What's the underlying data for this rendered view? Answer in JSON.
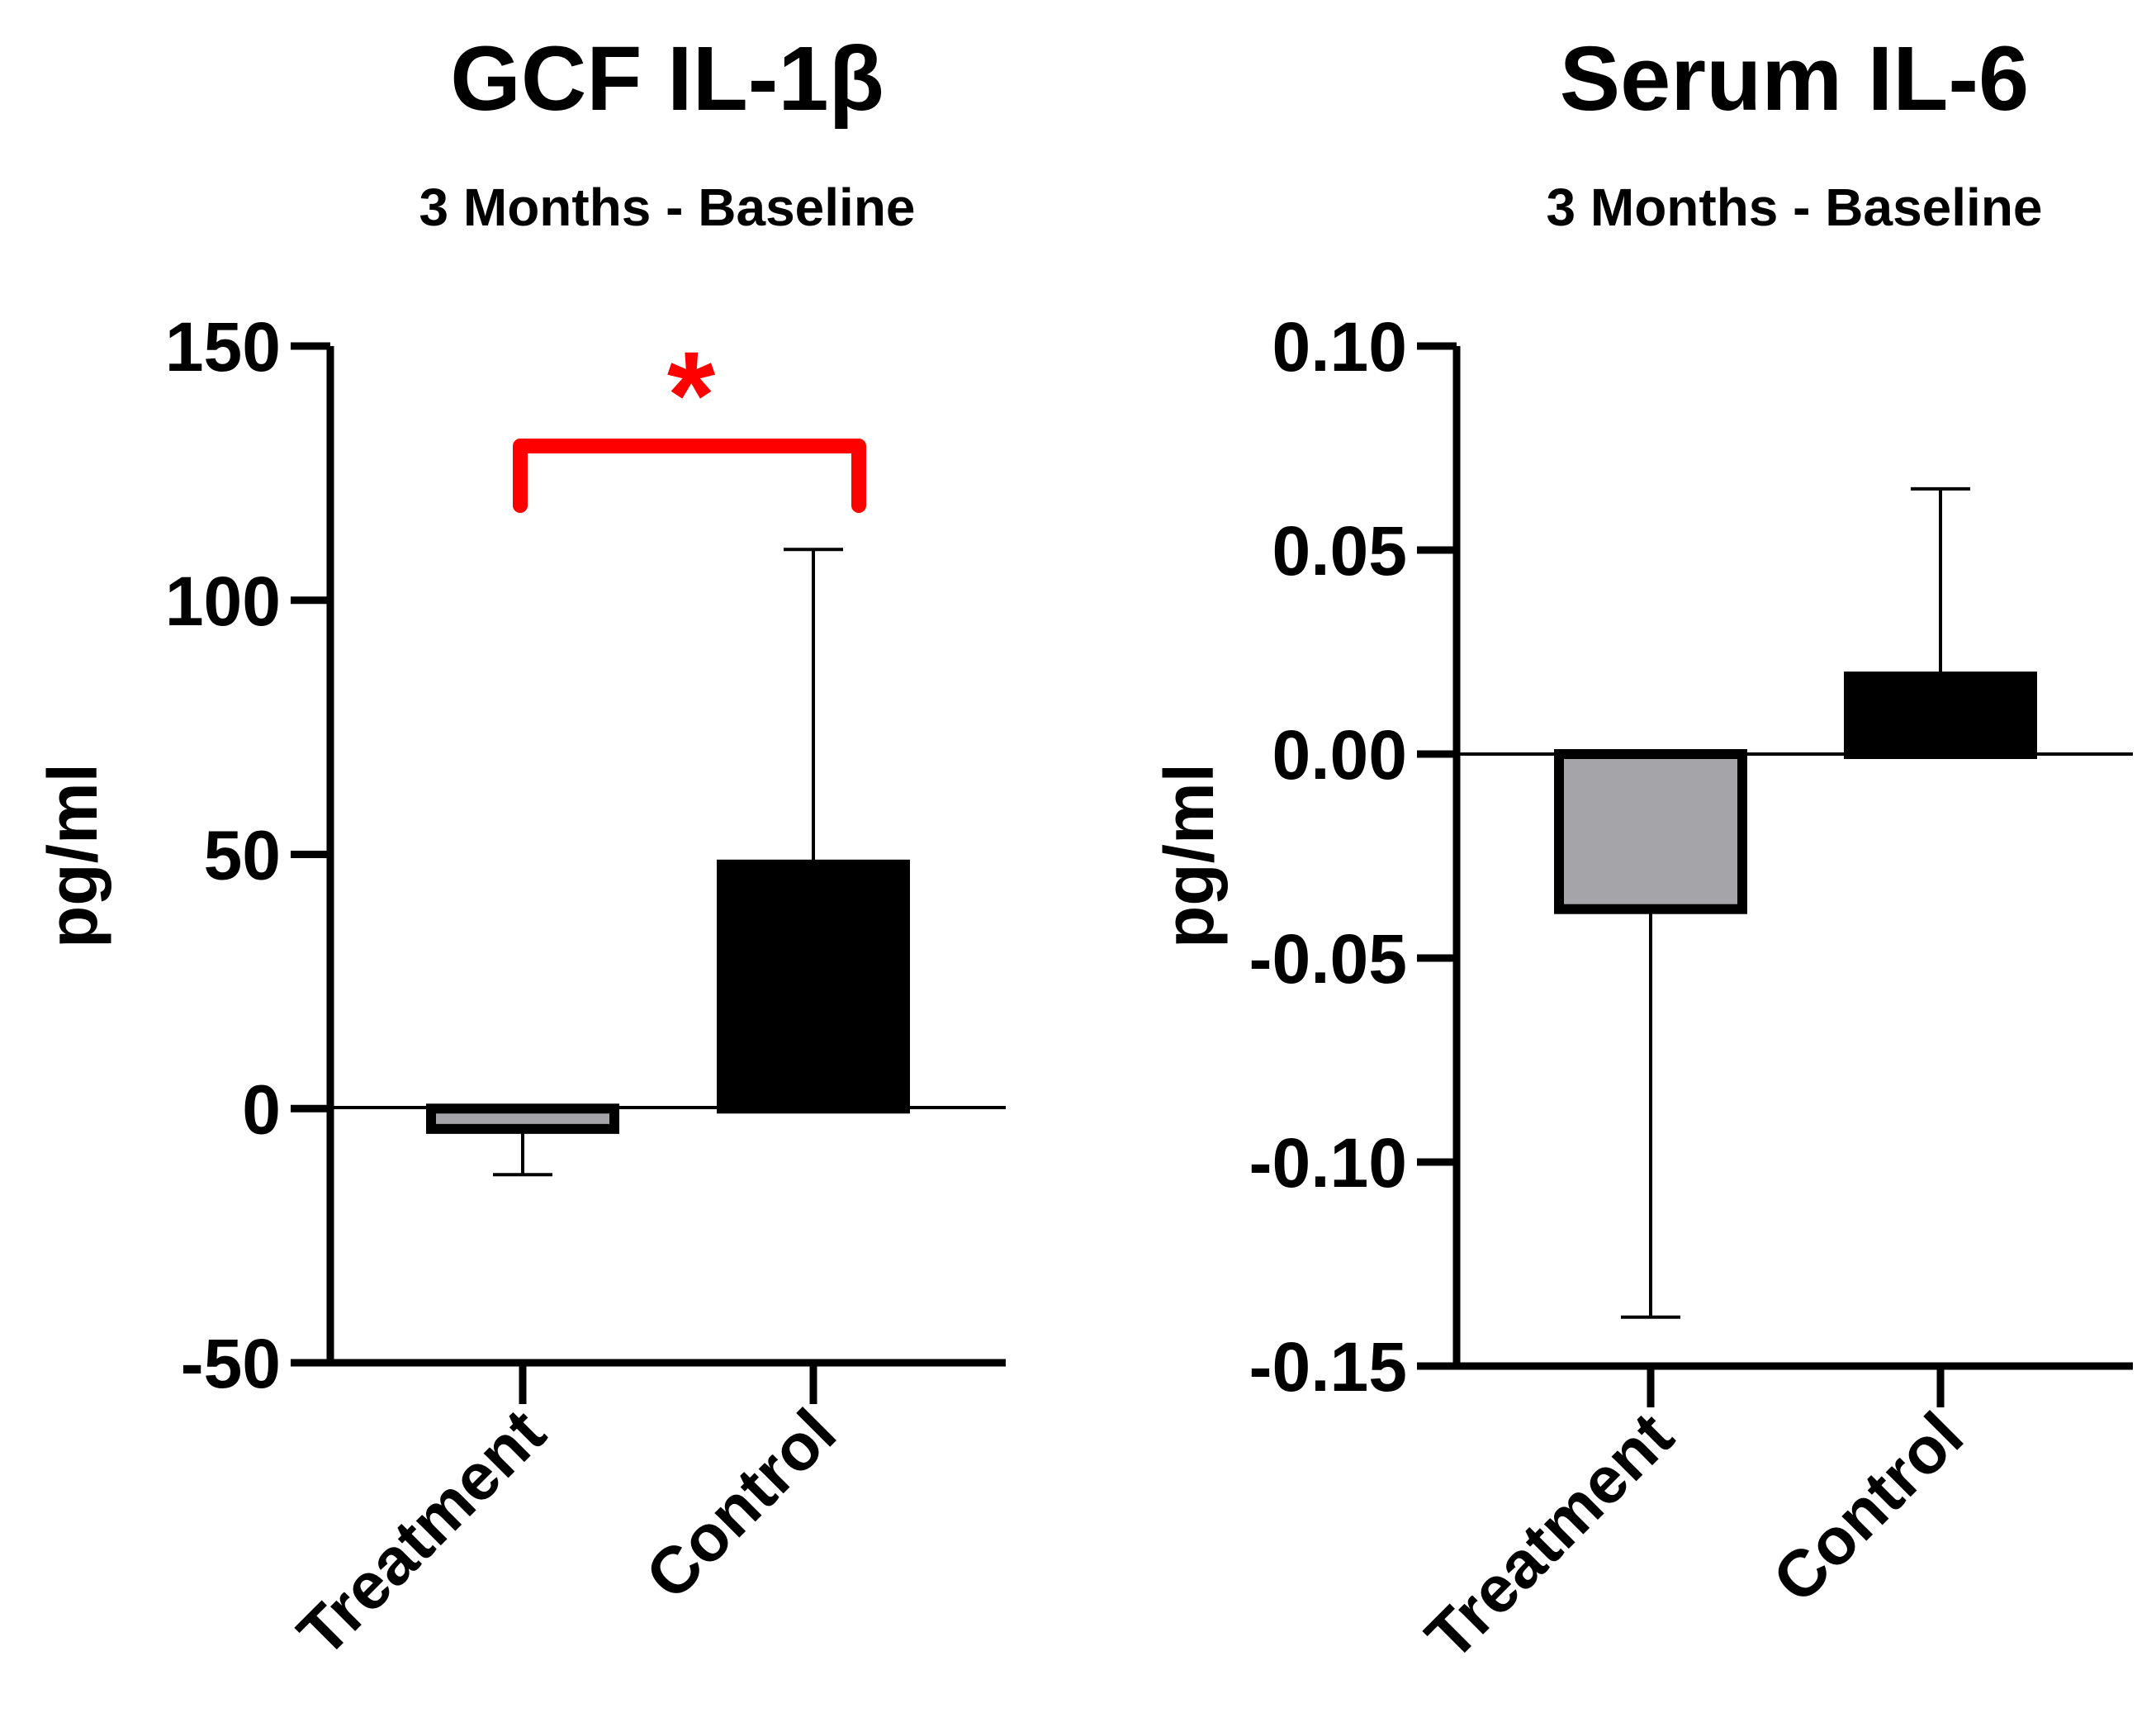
{
  "colors": {
    "axis": "#000000",
    "treatment_fill": "#a5a4a8",
    "control_fill": "#000000",
    "bar_outline": "#000000",
    "significance": "#ff0000"
  },
  "chart_data": [
    {
      "type": "bar",
      "title": "GCF IL-1β",
      "subtitle": "3 Months - Baseline",
      "xlabel": "",
      "ylabel": "pg/ml",
      "ylim": [
        -50,
        150
      ],
      "ticks": [
        -50,
        0,
        50,
        100,
        150
      ],
      "tick_labels": [
        "-50",
        "0",
        "50",
        "100",
        "150"
      ],
      "categories": [
        "Treatment",
        "Control"
      ],
      "values": [
        -4,
        48
      ],
      "error_tips": [
        -13,
        110
      ],
      "significance": {
        "between": [
          "Treatment",
          "Control"
        ],
        "label": "*"
      }
    },
    {
      "type": "bar",
      "title": "Serum IL-6",
      "subtitle": "3 Months - Baseline",
      "xlabel": "",
      "ylabel": "pg/ml",
      "ylim": [
        -0.15,
        0.1
      ],
      "ticks": [
        -0.15,
        -0.1,
        -0.05,
        0.0,
        0.05,
        0.1
      ],
      "tick_labels": [
        "-0.15",
        "-0.10",
        "-0.05",
        "0.00",
        "0.05",
        "0.10"
      ],
      "categories": [
        "Treatment",
        "Control"
      ],
      "values": [
        -0.038,
        0.019
      ],
      "error_tips": [
        -0.138,
        0.065
      ],
      "significance": null
    }
  ]
}
